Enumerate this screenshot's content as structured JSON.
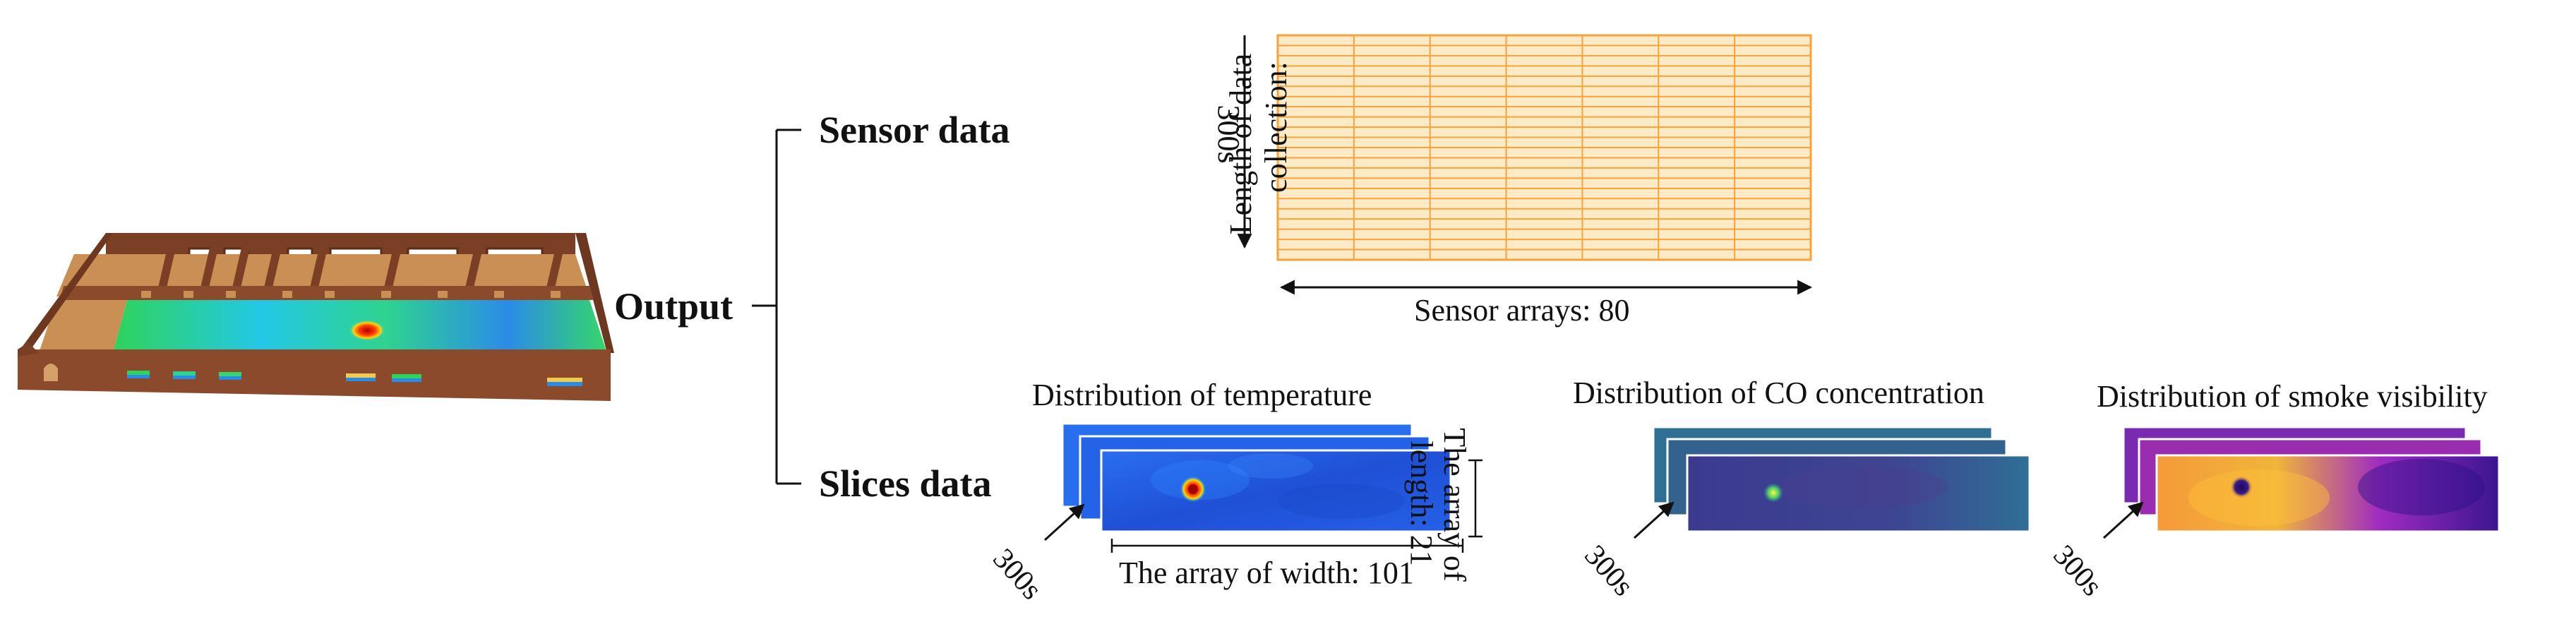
{
  "tree": {
    "root_label": "Output",
    "branches": [
      {
        "label": "Sensor data"
      },
      {
        "label": "Slices data"
      }
    ]
  },
  "sensor_grid": {
    "y_axis_label_line1": "Length of data",
    "y_axis_label_line2": "collection:",
    "y_axis_value": "300s",
    "x_axis_label": "Sensor arrays: 80",
    "grid_color": "#f7a23a",
    "grid_fill": "#fdebc8"
  },
  "slices": [
    {
      "title": "Distribution of temperature",
      "time_label": "300s",
      "palette": "jet"
    },
    {
      "title": "Distribution of CO concentration",
      "time_label": "300s",
      "palette": "viridis"
    },
    {
      "title": "Distribution of smoke visibility",
      "time_label": "300s",
      "palette": "plasma"
    }
  ],
  "temperature_dims": {
    "height_label_line1": "The array of",
    "height_label_line2": "length: 21",
    "width_label": "The array of width: 101"
  },
  "colors": {
    "building_wall": "#8b4a2b",
    "building_floor": "#c98f55",
    "temp_background": "#1f5bd8",
    "co_background": "#3b3a8f",
    "smoke_background": "#6a1ea0"
  }
}
